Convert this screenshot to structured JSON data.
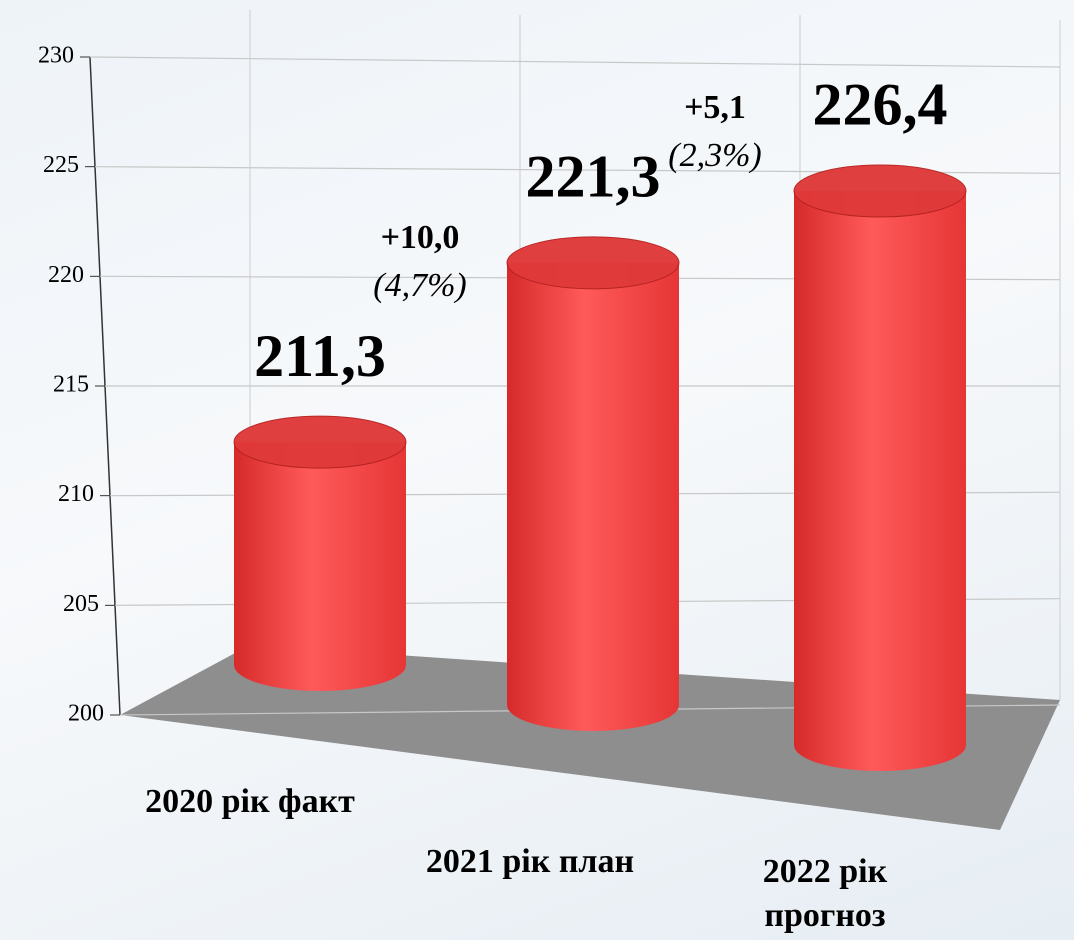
{
  "chart_data": {
    "type": "cylinder",
    "categories": [
      "2020 рік факт",
      "2021 рік план",
      "2022 рік прогноз"
    ],
    "values": [
      211.3,
      221.3,
      226.4
    ],
    "value_labels": [
      "211,3",
      "221,3",
      "226,4"
    ],
    "color": "#ff4a4a",
    "annotations": [
      {
        "change": "+10,0",
        "percent": "(4,7%)"
      },
      {
        "change": "+5,1",
        "percent": "(2,3%)"
      }
    ],
    "ylim": [
      200,
      230
    ],
    "yticks": [
      200,
      205,
      210,
      215,
      220,
      225,
      230
    ],
    "grid": true
  }
}
